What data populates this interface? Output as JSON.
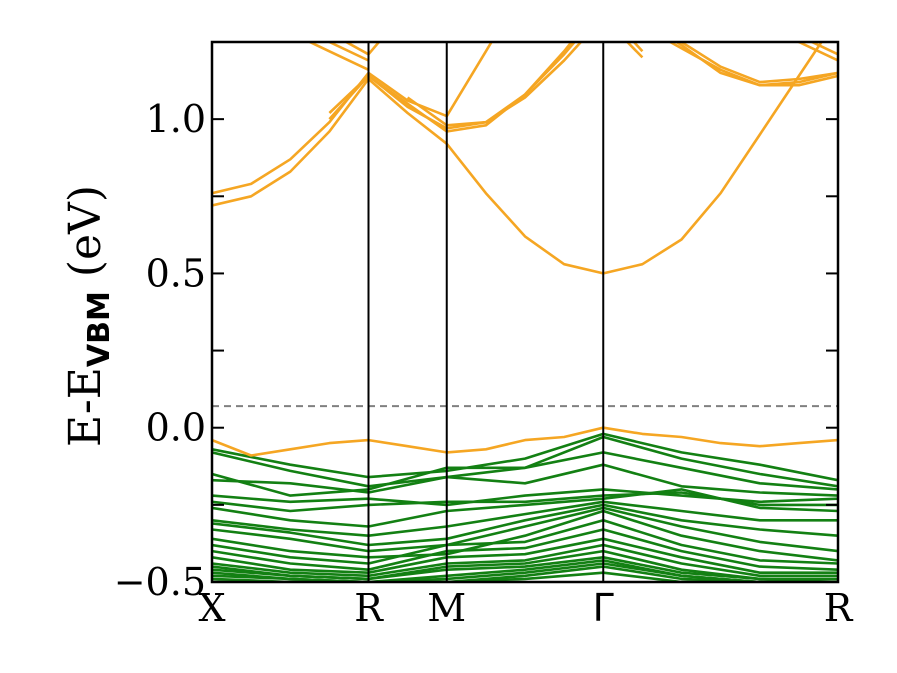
{
  "chart_data": {
    "type": "line",
    "title": "",
    "ylabel": {
      "main": "E-E",
      "sub": "VBM",
      "unit": " (eV)"
    },
    "xlabel": "",
    "ylim": [
      -0.5,
      1.25
    ],
    "x_range": [
      0,
      8
    ],
    "yticks": [
      {
        "value": -0.5,
        "label": "−0.5"
      },
      {
        "value": 0.0,
        "label": "0.0"
      },
      {
        "value": 0.5,
        "label": "0.5"
      },
      {
        "value": 1.0,
        "label": "1.0"
      }
    ],
    "minor_yticks": [
      -0.25,
      0.25,
      0.75
    ],
    "kpoints": [
      {
        "x": 0,
        "label": "X"
      },
      {
        "x": 2,
        "label": "R"
      },
      {
        "x": 3,
        "label": "M"
      },
      {
        "x": 5,
        "label": "Γ"
      },
      {
        "x": 8,
        "label": "R"
      }
    ],
    "fermi_level": 0.07,
    "grid": false,
    "conduction_color": "#F5A623",
    "valence_color": "#138013",
    "fermi_color": "#808080",
    "conduction_bands": [
      {
        "x": [
          0,
          0.5,
          1,
          1.5,
          2,
          2.5,
          3,
          3.5,
          4,
          4.5,
          5,
          5.5,
          6,
          6.5,
          7,
          7.5,
          8
        ],
        "y": [
          0.72,
          0.75,
          0.83,
          0.96,
          1.13,
          1.02,
          0.92,
          0.76,
          0.62,
          0.53,
          0.5,
          0.53,
          0.61,
          0.76,
          0.95,
          1.14,
          1.33
        ]
      },
      {
        "x": [
          0,
          0.5,
          1,
          1.5,
          2,
          2.5,
          3,
          3.5,
          4,
          4.5
        ],
        "y": [
          0.76,
          0.79,
          0.87,
          0.99,
          1.15,
          1.06,
          1.01,
          1.22,
          1.43,
          1.64
        ]
      },
      {
        "x": [
          0,
          0.5,
          1,
          1.5,
          2
        ],
        "y": [
          1.36,
          1.33,
          1.28,
          1.22,
          1.16
        ]
      },
      {
        "x": [
          0,
          0.5,
          1,
          1.5,
          2
        ],
        "y": [
          1.38,
          1.35,
          1.3,
          1.25,
          1.19
        ]
      },
      {
        "x": [
          0.5,
          1,
          1.5,
          2,
          2.5
        ],
        "y": [
          1.37,
          1.33,
          1.28,
          1.21,
          1.36
        ]
      },
      {
        "x": [
          1.5,
          2,
          2.5,
          3,
          3.5,
          4,
          4.5,
          5,
          5.5
        ],
        "y": [
          1.0,
          1.14,
          1.04,
          0.97,
          0.99,
          1.07,
          1.19,
          1.33,
          1.2
        ]
      },
      {
        "x": [
          1.5,
          2,
          2.5,
          3,
          3.5,
          4,
          4.5,
          5,
          5.5
        ],
        "y": [
          1.02,
          1.14,
          1.05,
          0.96,
          0.98,
          1.08,
          1.21,
          1.36,
          1.22
        ]
      },
      {
        "x": [
          2.5,
          3,
          3.5,
          4,
          4.5,
          5
        ],
        "y": [
          1.07,
          0.98,
          0.99,
          1.08,
          1.22,
          1.38
        ]
      },
      {
        "x": [
          5.5,
          6,
          6.5,
          7,
          7.5,
          8
        ],
        "y": [
          1.32,
          1.24,
          1.15,
          1.11,
          1.12,
          1.15
        ]
      },
      {
        "x": [
          5.5,
          6,
          6.5,
          7,
          7.5,
          8
        ],
        "y": [
          1.3,
          1.23,
          1.16,
          1.11,
          1.11,
          1.14
        ]
      },
      {
        "x": [
          5.5,
          6,
          6.5,
          7,
          7.5,
          8
        ],
        "y": [
          1.34,
          1.25,
          1.17,
          1.12,
          1.13,
          1.15
        ]
      },
      {
        "x": [
          7,
          7.5,
          8
        ],
        "y": [
          1.3,
          1.25,
          1.19
        ]
      },
      {
        "x": [
          7,
          7.5,
          8
        ],
        "y": [
          1.33,
          1.27,
          1.21
        ]
      }
    ],
    "highest_valence_band": {
      "x": [
        0,
        0.5,
        1,
        1.5,
        2,
        2.5,
        3,
        3.5,
        4,
        4.5,
        5,
        5.5,
        6,
        6.5,
        7,
        7.5,
        8
      ],
      "y": [
        -0.04,
        -0.09,
        -0.07,
        -0.05,
        -0.04,
        -0.06,
        -0.08,
        -0.07,
        -0.04,
        -0.03,
        0.0,
        -0.02,
        -0.03,
        -0.05,
        -0.06,
        -0.05,
        -0.04
      ]
    },
    "valence_bands": [
      {
        "x": [
          0,
          1,
          2,
          3,
          4,
          5,
          6,
          7,
          8
        ],
        "y": [
          -0.07,
          -0.12,
          -0.16,
          -0.14,
          -0.1,
          -0.02,
          -0.08,
          -0.12,
          -0.17
        ]
      },
      {
        "x": [
          0,
          1,
          2,
          3,
          4,
          5,
          6,
          7,
          8
        ],
        "y": [
          -0.08,
          -0.14,
          -0.19,
          -0.16,
          -0.13,
          -0.03,
          -0.1,
          -0.15,
          -0.19
        ]
      },
      {
        "x": [
          0,
          1,
          2,
          3,
          4,
          5,
          6,
          7,
          8
        ],
        "y": [
          -0.15,
          -0.22,
          -0.2,
          -0.13,
          -0.13,
          -0.08,
          -0.13,
          -0.18,
          -0.2
        ]
      },
      {
        "x": [
          0,
          1,
          2,
          3,
          4,
          5,
          6,
          7,
          8
        ],
        "y": [
          -0.17,
          -0.18,
          -0.21,
          -0.16,
          -0.18,
          -0.12,
          -0.19,
          -0.21,
          -0.22
        ]
      },
      {
        "x": [
          0,
          1,
          2,
          3,
          4,
          5,
          6,
          7,
          8
        ],
        "y": [
          -0.22,
          -0.24,
          -0.23,
          -0.25,
          -0.22,
          -0.2,
          -0.22,
          -0.24,
          -0.23
        ]
      },
      {
        "x": [
          0,
          1,
          2,
          3,
          4,
          5,
          6,
          7,
          8
        ],
        "y": [
          -0.24,
          -0.27,
          -0.25,
          -0.24,
          -0.24,
          -0.22,
          -0.21,
          -0.25,
          -0.25
        ]
      },
      {
        "x": [
          0,
          1,
          2,
          3,
          4,
          5,
          6,
          7,
          8
        ],
        "y": [
          -0.26,
          -0.3,
          -0.32,
          -0.27,
          -0.25,
          -0.23,
          -0.2,
          -0.26,
          -0.27
        ]
      },
      {
        "x": [
          0,
          1,
          2,
          3,
          4,
          5,
          6,
          7,
          8
        ],
        "y": [
          -0.3,
          -0.33,
          -0.35,
          -0.32,
          -0.28,
          -0.24,
          -0.27,
          -0.3,
          -0.3
        ]
      },
      {
        "x": [
          0,
          1,
          2,
          3,
          4,
          5,
          6,
          7,
          8
        ],
        "y": [
          -0.31,
          -0.34,
          -0.38,
          -0.36,
          -0.3,
          -0.25,
          -0.3,
          -0.33,
          -0.35
        ]
      },
      {
        "x": [
          0,
          1,
          2,
          3,
          4,
          5,
          6,
          7,
          8
        ],
        "y": [
          -0.33,
          -0.36,
          -0.4,
          -0.38,
          -0.32,
          -0.26,
          -0.32,
          -0.37,
          -0.4
        ]
      },
      {
        "x": [
          0,
          1,
          2,
          3,
          4,
          5,
          6,
          7,
          8
        ],
        "y": [
          -0.36,
          -0.4,
          -0.42,
          -0.41,
          -0.35,
          -0.27,
          -0.35,
          -0.4,
          -0.43
        ]
      },
      {
        "x": [
          0,
          1,
          2,
          3,
          4,
          5,
          6,
          7,
          8
        ],
        "y": [
          -0.38,
          -0.42,
          -0.44,
          -0.38,
          -0.37,
          -0.3,
          -0.38,
          -0.43,
          -0.44
        ]
      },
      {
        "x": [
          0,
          1,
          2,
          3,
          4,
          5,
          6,
          7,
          8
        ],
        "y": [
          -0.4,
          -0.44,
          -0.46,
          -0.4,
          -0.39,
          -0.33,
          -0.4,
          -0.45,
          -0.46
        ]
      },
      {
        "x": [
          0,
          1,
          2,
          3,
          4,
          5,
          6,
          7,
          8
        ],
        "y": [
          -0.42,
          -0.46,
          -0.47,
          -0.42,
          -0.41,
          -0.36,
          -0.42,
          -0.47,
          -0.47
        ]
      },
      {
        "x": [
          0,
          1,
          2,
          3,
          4,
          5,
          6,
          7,
          8
        ],
        "y": [
          -0.44,
          -0.47,
          -0.48,
          -0.44,
          -0.43,
          -0.38,
          -0.44,
          -0.48,
          -0.48
        ]
      },
      {
        "x": [
          0,
          1,
          2,
          3,
          4,
          5,
          6,
          7,
          8
        ],
        "y": [
          -0.45,
          -0.48,
          -0.49,
          -0.45,
          -0.44,
          -0.4,
          -0.46,
          -0.49,
          -0.49
        ]
      },
      {
        "x": [
          0,
          1,
          2,
          3,
          4,
          5,
          6,
          7,
          8
        ],
        "y": [
          -0.46,
          -0.48,
          -0.49,
          -0.46,
          -0.45,
          -0.42,
          -0.47,
          -0.49,
          -0.5
        ]
      },
      {
        "x": [
          0,
          1,
          2,
          3,
          4,
          5,
          6,
          7,
          8
        ],
        "y": [
          -0.47,
          -0.49,
          -0.5,
          -0.48,
          -0.46,
          -0.43,
          -0.48,
          -0.5,
          -0.5
        ]
      },
      {
        "x": [
          0,
          1,
          2,
          3,
          4,
          5,
          6,
          7,
          8
        ],
        "y": [
          -0.48,
          -0.49,
          -0.5,
          -0.49,
          -0.47,
          -0.44,
          -0.48,
          -0.5,
          -0.5
        ]
      },
      {
        "x": [
          0,
          1,
          2,
          3,
          4,
          5,
          6,
          7,
          8
        ],
        "y": [
          -0.49,
          -0.5,
          -0.5,
          -0.5,
          -0.48,
          -0.45,
          -0.49,
          -0.5,
          -0.5
        ]
      },
      {
        "x": [
          0,
          1,
          2,
          3,
          4,
          5,
          6,
          7,
          8
        ],
        "y": [
          -0.5,
          -0.5,
          -0.5,
          -0.5,
          -0.49,
          -0.47,
          -0.5,
          -0.5,
          -0.5
        ]
      }
    ]
  }
}
